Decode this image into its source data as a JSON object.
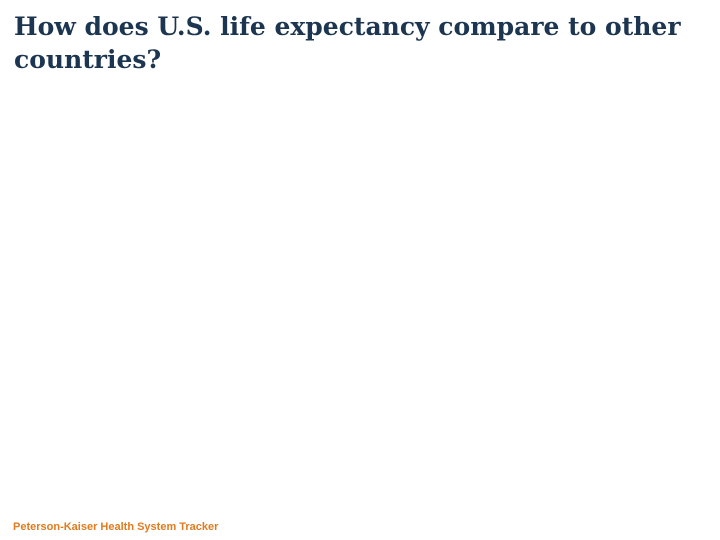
{
  "slide": {
    "title": "How does U.S. life expectancy compare to other countries?"
  },
  "footer": {
    "source": "Peterson-Kaiser Health System Tracker"
  },
  "colors": {
    "title": "#1c3550",
    "footer": "#e07b1f",
    "background": "#ffffff"
  }
}
